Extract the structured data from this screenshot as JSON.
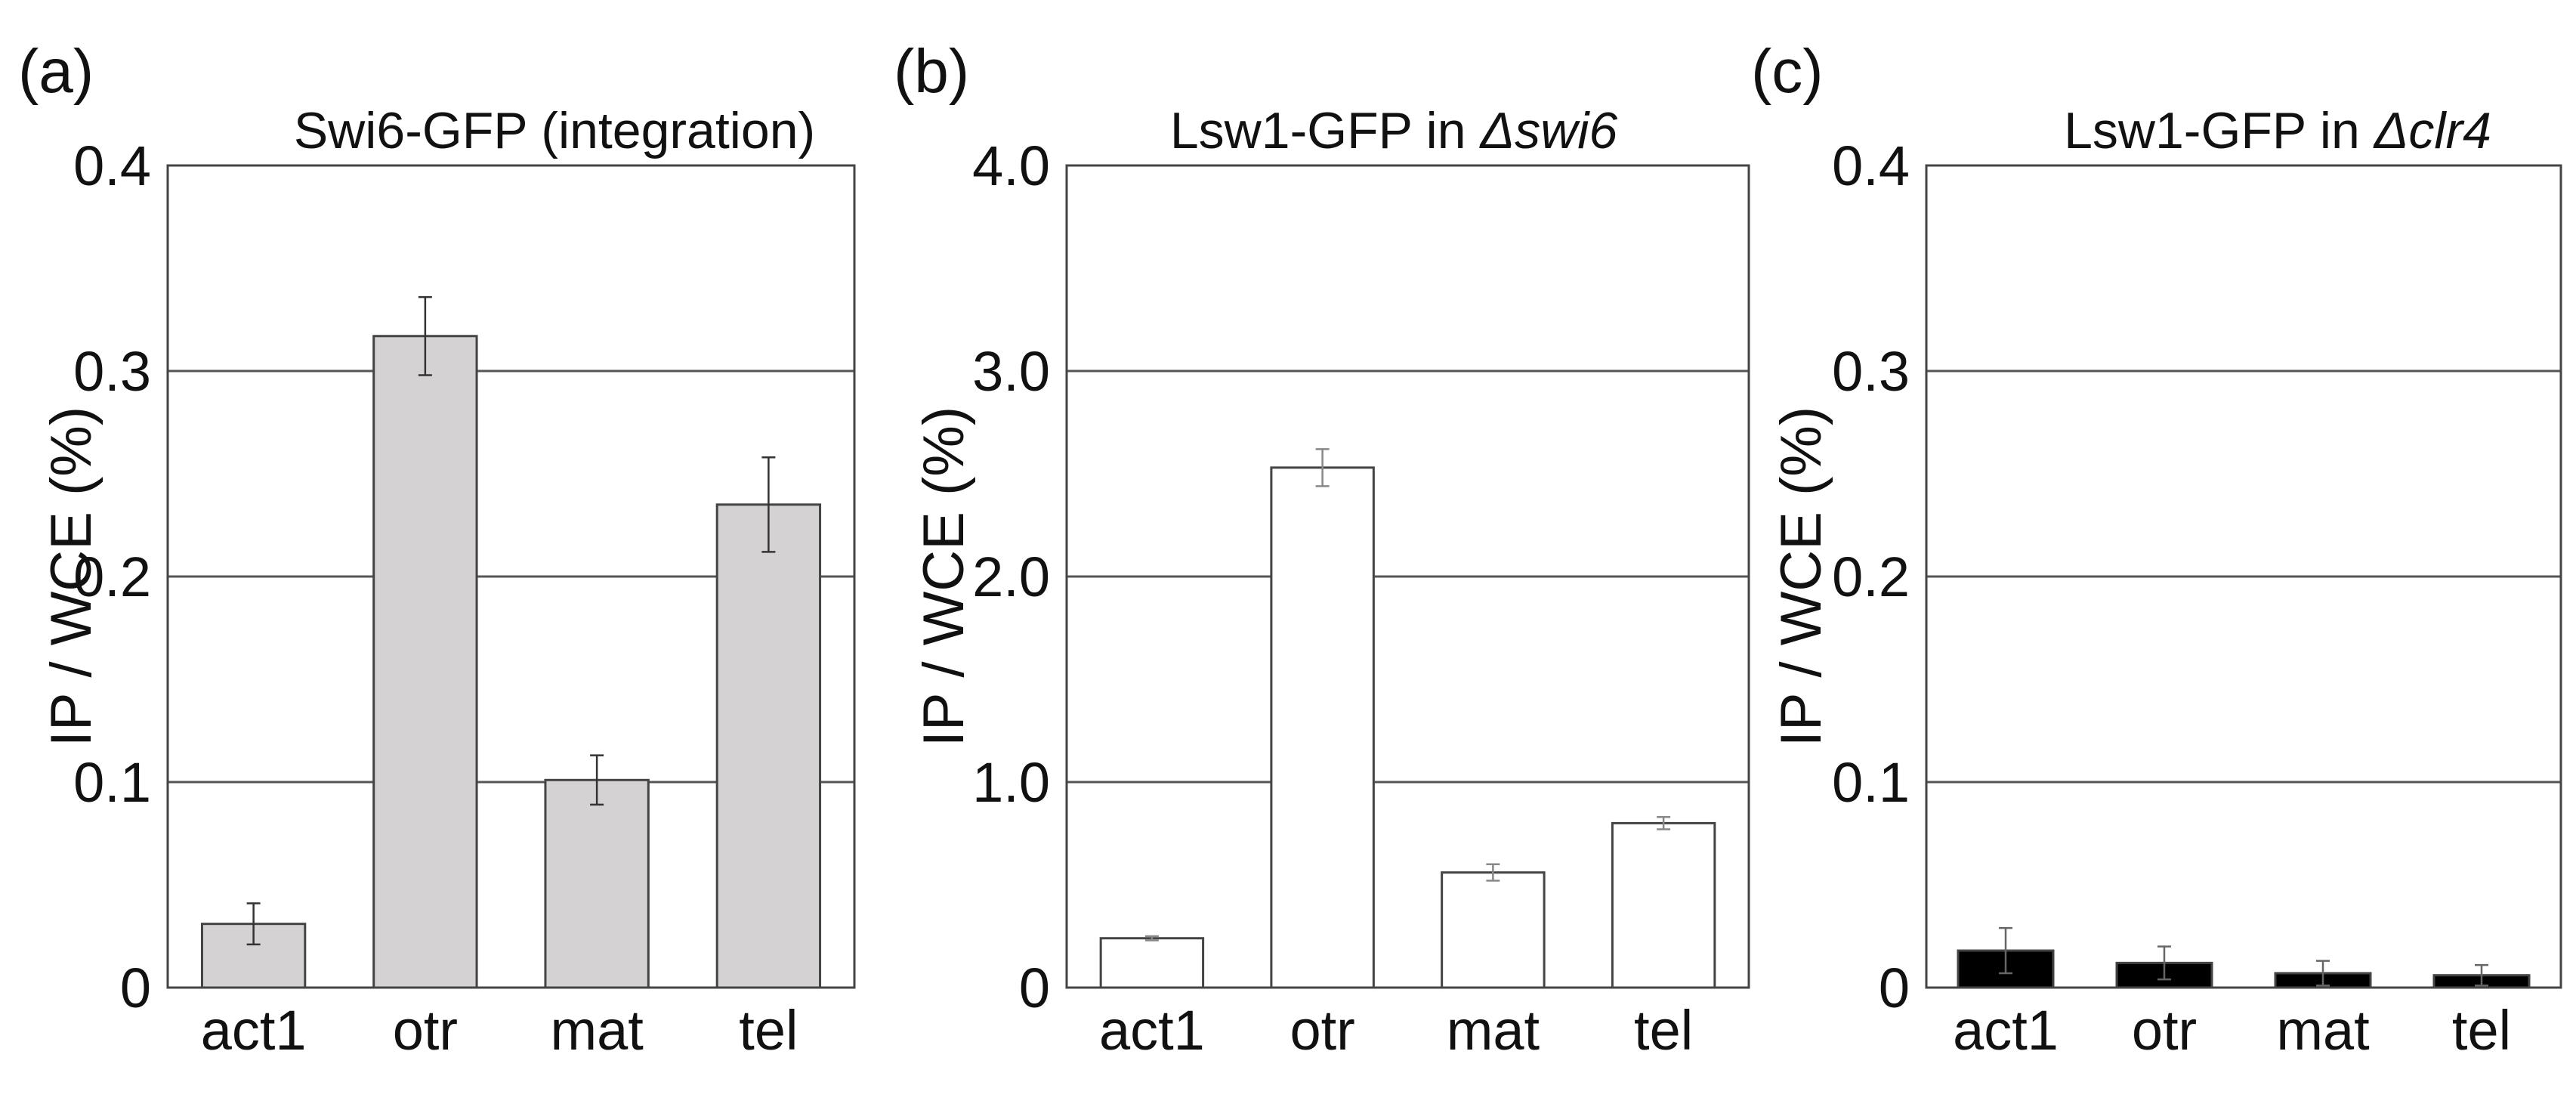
{
  "figure": {
    "ylabel": "IP / WCE (%)"
  },
  "chart_data": [
    {
      "type": "bar",
      "panel": "(a)",
      "title": "Swi6-GFP (integration)",
      "title_parts": [
        {
          "text": "Swi6-GFP (integration)",
          "italic": false
        }
      ],
      "xlabel": "",
      "ylabel": "IP / WCE (%)",
      "categories": [
        "act1",
        "otr",
        "mat",
        "tel"
      ],
      "values": [
        0.031,
        0.317,
        0.101,
        0.235
      ],
      "errors": [
        0.01,
        0.019,
        0.012,
        0.023
      ],
      "ylim": [
        0,
        0.4
      ],
      "yticks": [
        0,
        0.1,
        0.2,
        0.3,
        0.4
      ],
      "ytick_labels": [
        "0",
        "0.1",
        "0.2",
        "0.3",
        "0.4"
      ],
      "grid": true,
      "colors": {
        "bar": "#d4d2d3",
        "error": "#333333"
      }
    },
    {
      "type": "bar",
      "panel": "(b)",
      "title": "Lsw1-GFP in Δswi6",
      "title_parts": [
        {
          "text": "Lsw1-GFP in ",
          "italic": false
        },
        {
          "text": "Δswi6",
          "italic": true
        }
      ],
      "xlabel": "",
      "ylabel": "IP / WCE (%)",
      "categories": [
        "act1",
        "otr",
        "mat",
        "tel"
      ],
      "values": [
        0.24,
        2.53,
        0.56,
        0.8
      ],
      "errors": [
        0.01,
        0.09,
        0.04,
        0.03
      ],
      "ylim": [
        0,
        4.0
      ],
      "yticks": [
        0,
        1.0,
        2.0,
        3.0,
        4.0
      ],
      "ytick_labels": [
        "0",
        "1.0",
        "2.0",
        "3.0",
        "4.0"
      ],
      "grid": true,
      "colors": {
        "bar": "#ffffff",
        "error": "#888888"
      }
    },
    {
      "type": "bar",
      "panel": "(c)",
      "title": "Lsw1-GFP in Δclr4",
      "title_parts": [
        {
          "text": "Lsw1-GFP in ",
          "italic": false
        },
        {
          "text": "Δclr4",
          "italic": true
        }
      ],
      "xlabel": "",
      "ylabel": "IP / WCE (%)",
      "categories": [
        "act1",
        "otr",
        "mat",
        "tel"
      ],
      "values": [
        0.018,
        0.012,
        0.007,
        0.006
      ],
      "errors": [
        0.011,
        0.008,
        0.006,
        0.005
      ],
      "ylim": [
        0,
        0.4
      ],
      "yticks": [
        0,
        0.1,
        0.2,
        0.3,
        0.4
      ],
      "ytick_labels": [
        "0",
        "0.1",
        "0.2",
        "0.3",
        "0.4"
      ],
      "grid": true,
      "colors": {
        "bar": "#000000",
        "error": "#666666"
      }
    }
  ]
}
